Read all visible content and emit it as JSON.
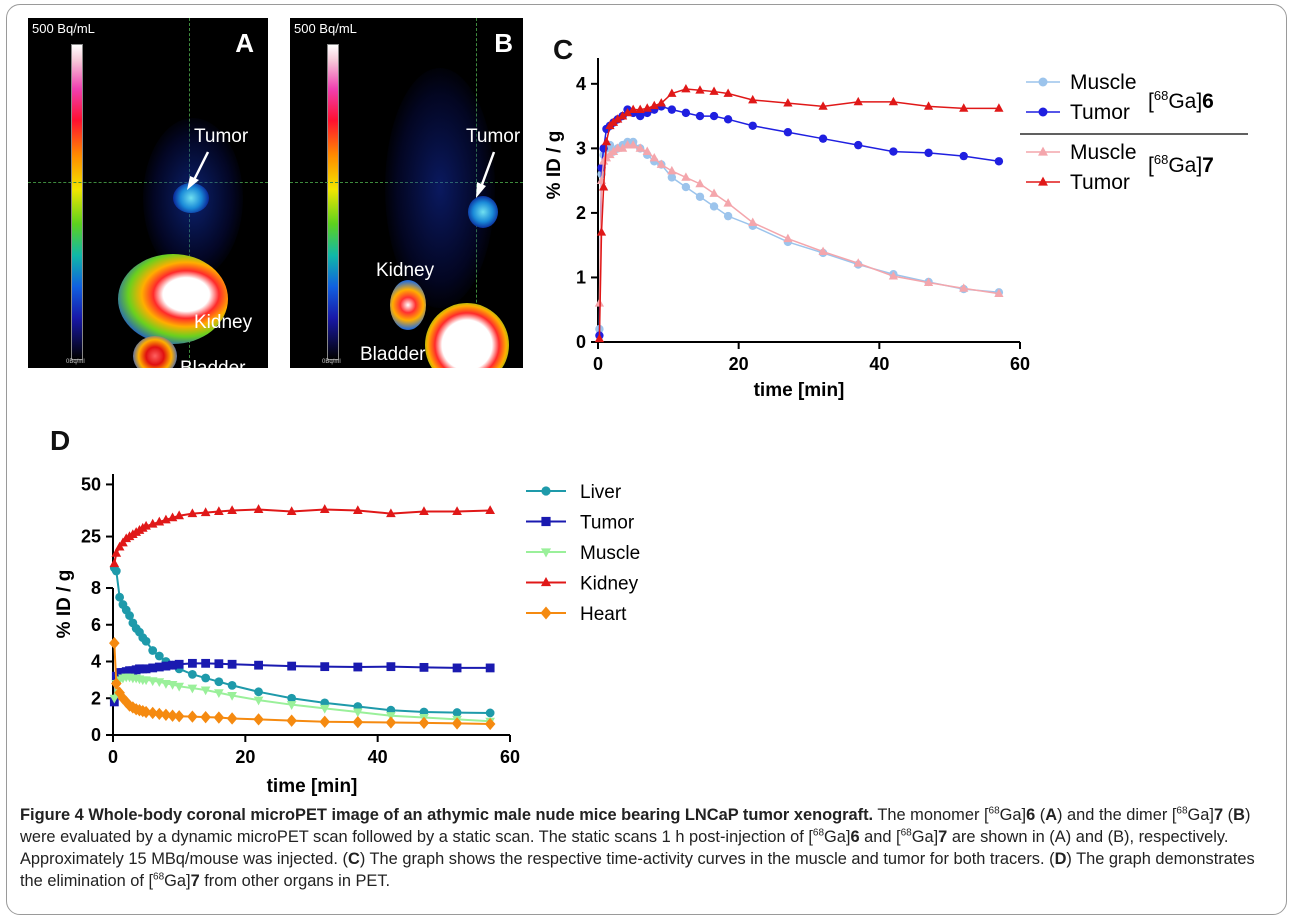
{
  "panels": {
    "A": {
      "letter": "A",
      "scale_max": "500 Bq/mL",
      "scale_min": "0Bq/ml",
      "labels": [
        "Tumor",
        "Kidney",
        "Bladder"
      ]
    },
    "B": {
      "letter": "B",
      "scale_max": "500 Bq/mL",
      "scale_min": "0Bq/ml",
      "labels": [
        "Tumor",
        "Kidney",
        "Bladder"
      ]
    },
    "C": {
      "letter": "C"
    },
    "D": {
      "letter": "D"
    }
  },
  "caption": {
    "label": "Figure 4",
    "title": "Whole-body coronal microPET image of an athymic male nude mice bearing LNCaP tumor xenograft.",
    "t1": "The monomer [",
    "sup": "68",
    "t2": "Ga]",
    "n6": "6",
    "t3": " (",
    "A": "A",
    "t4": ") and the dimer [",
    "n7": "7",
    "B": "B",
    "t5": ") were evaluated by a dynamic microPET scan followed by a static scan. The static scans 1 h post-injection of [",
    "t6": " and [",
    "t7": " are shown in (A) and (B), respectively. Approximately 15 MBq/mouse was injected. (",
    "C": "C",
    "t8": ") The graph shows the respective time-activity curves in the muscle and tumor for both tracers. (",
    "D": "D",
    "t9": ") The graph demonstrates the elimination of [",
    "t10": " from other organs in PET."
  },
  "chart_data": [
    {
      "type": "line",
      "panel": "C",
      "xlabel": "time [min]",
      "ylabel": "% ID / g",
      "xlim": [
        0,
        60
      ],
      "ylim": [
        0,
        4.4
      ],
      "xticks": [
        0,
        20,
        40,
        60
      ],
      "yticks": [
        0,
        1,
        2,
        3,
        4
      ],
      "legend_position": "right",
      "legend_groups": [
        {
          "label_pre": "[",
          "label_sup": "68",
          "label_mid": "Ga]",
          "label_bold": "6",
          "series": [
            0,
            1
          ]
        },
        {
          "label_pre": "[",
          "label_sup": "68",
          "label_mid": "Ga]",
          "label_bold": "7",
          "series": [
            2,
            3
          ]
        }
      ],
      "series": [
        {
          "name": "Muscle",
          "color": "#9cc4ec",
          "marker": "circle",
          "x": [
            0.2,
            0.5,
            0.8,
            1.2,
            1.7,
            2.2,
            2.8,
            3.5,
            4.2,
            5,
            6,
            7,
            8,
            9,
            10.5,
            12.5,
            14.5,
            16.5,
            18.5,
            22,
            27,
            32,
            37,
            42,
            47,
            52,
            57
          ],
          "y": [
            0.2,
            2.6,
            2.9,
            3.0,
            3.05,
            2.95,
            3.0,
            3.05,
            3.1,
            3.1,
            3.0,
            2.9,
            2.8,
            2.75,
            2.55,
            2.4,
            2.25,
            2.1,
            1.95,
            1.8,
            1.55,
            1.38,
            1.2,
            1.05,
            0.93,
            0.82,
            0.77
          ]
        },
        {
          "name": "Tumor",
          "color": "#1f1fe0",
          "marker": "circle",
          "x": [
            0.2,
            0.5,
            0.8,
            1.2,
            1.7,
            2.2,
            2.8,
            3.5,
            4.2,
            5,
            6,
            7,
            8,
            9,
            10.5,
            12.5,
            14.5,
            16.5,
            18.5,
            22,
            27,
            32,
            37,
            42,
            47,
            52,
            57
          ],
          "y": [
            0.1,
            2.7,
            3.0,
            3.3,
            3.35,
            3.4,
            3.45,
            3.5,
            3.6,
            3.55,
            3.5,
            3.55,
            3.6,
            3.65,
            3.6,
            3.55,
            3.5,
            3.5,
            3.45,
            3.35,
            3.25,
            3.15,
            3.05,
            2.95,
            2.93,
            2.88,
            2.8
          ]
        },
        {
          "name": "Muscle",
          "color": "#f4a6ac",
          "marker": "triangle",
          "x": [
            0.2,
            0.5,
            0.8,
            1.2,
            1.7,
            2.2,
            2.8,
            3.5,
            4.2,
            5,
            6,
            7,
            8,
            9,
            10.5,
            12.5,
            14.5,
            16.5,
            18.5,
            22,
            27,
            32,
            37,
            42,
            47,
            52,
            57
          ],
          "y": [
            0.6,
            2.5,
            2.8,
            2.85,
            2.9,
            2.95,
            3.0,
            3.0,
            3.05,
            3.05,
            3.0,
            2.95,
            2.85,
            2.75,
            2.65,
            2.55,
            2.45,
            2.3,
            2.15,
            1.85,
            1.6,
            1.4,
            1.22,
            1.02,
            0.92,
            0.83,
            0.75
          ]
        },
        {
          "name": "Tumor",
          "color": "#e01818",
          "marker": "triangle",
          "x": [
            0.2,
            0.5,
            0.8,
            1.2,
            1.7,
            2.2,
            2.8,
            3.5,
            4.2,
            5,
            6,
            7,
            8,
            9,
            10.5,
            12.5,
            14.5,
            16.5,
            18.5,
            22,
            27,
            32,
            37,
            42,
            47,
            52,
            57
          ],
          "y": [
            0.05,
            1.7,
            2.4,
            3.1,
            3.35,
            3.4,
            3.45,
            3.5,
            3.55,
            3.6,
            3.6,
            3.62,
            3.66,
            3.7,
            3.85,
            3.92,
            3.9,
            3.88,
            3.85,
            3.75,
            3.7,
            3.65,
            3.72,
            3.72,
            3.65,
            3.62,
            3.62
          ]
        }
      ]
    },
    {
      "type": "line",
      "panel": "D",
      "xlabel": "time [min]",
      "ylabel": "% ID / g",
      "xlim": [
        0,
        60
      ],
      "axis_break": {
        "lower_range": [
          0,
          8
        ],
        "upper_range": [
          8,
          55
        ]
      },
      "xticks": [
        0,
        20,
        40,
        60
      ],
      "yticks": [
        0,
        2,
        4,
        6,
        8,
        25,
        50
      ],
      "legend_position": "right",
      "series": [
        {
          "name": "Liver",
          "color": "#1e9aaa",
          "marker": "circle",
          "x": [
            0.2,
            0.5,
            1,
            1.5,
            2,
            2.5,
            3,
            3.5,
            4,
            4.5,
            5,
            6,
            7,
            8,
            9,
            10,
            12,
            14,
            16,
            18,
            22,
            27,
            32,
            37,
            42,
            47,
            52,
            57
          ],
          "y": [
            10,
            8.5,
            7.5,
            7.1,
            6.8,
            6.5,
            6.1,
            5.8,
            5.6,
            5.3,
            5.1,
            4.6,
            4.3,
            4.0,
            3.8,
            3.6,
            3.3,
            3.1,
            2.9,
            2.7,
            2.35,
            2.0,
            1.75,
            1.55,
            1.35,
            1.25,
            1.22,
            1.2
          ]
        },
        {
          "name": "Tumor",
          "color": "#1a1ab0",
          "marker": "square",
          "x": [
            0.2,
            0.5,
            1,
            1.5,
            2,
            2.5,
            3,
            3.5,
            4,
            4.5,
            5,
            6,
            7,
            8,
            9,
            10,
            12,
            14,
            16,
            18,
            22,
            27,
            32,
            37,
            42,
            47,
            52,
            57
          ],
          "y": [
            1.8,
            3.2,
            3.4,
            3.4,
            3.45,
            3.5,
            3.5,
            3.55,
            3.6,
            3.6,
            3.6,
            3.65,
            3.7,
            3.75,
            3.8,
            3.85,
            3.9,
            3.9,
            3.88,
            3.85,
            3.8,
            3.75,
            3.72,
            3.7,
            3.72,
            3.68,
            3.65,
            3.65
          ]
        },
        {
          "name": "Muscle",
          "color": "#9af09a",
          "marker": "triangle-down",
          "x": [
            0.2,
            0.5,
            1,
            1.5,
            2,
            2.5,
            3,
            3.5,
            4,
            4.5,
            5,
            6,
            7,
            8,
            9,
            10,
            12,
            14,
            16,
            18,
            22,
            27,
            32,
            37,
            42,
            47,
            52,
            57
          ],
          "y": [
            2.0,
            2.8,
            3.0,
            3.1,
            3.15,
            3.15,
            3.1,
            3.1,
            3.05,
            3.0,
            3.0,
            2.95,
            2.9,
            2.8,
            2.75,
            2.65,
            2.55,
            2.45,
            2.3,
            2.15,
            1.9,
            1.65,
            1.45,
            1.25,
            1.05,
            0.95,
            0.85,
            0.75
          ]
        },
        {
          "name": "Kidney",
          "color": "#e01818",
          "marker": "triangle",
          "x": [
            0.2,
            0.5,
            1,
            1.5,
            2,
            2.5,
            3,
            3.5,
            4,
            4.5,
            5,
            6,
            7,
            8,
            9,
            10,
            12,
            14,
            16,
            18,
            22,
            27,
            32,
            37,
            42,
            47,
            52,
            57
          ],
          "y": [
            12,
            17,
            20,
            22,
            24,
            25,
            26,
            27,
            28,
            29,
            30,
            31,
            32,
            33,
            34,
            35,
            36,
            36.5,
            37,
            37.5,
            38,
            37,
            38,
            37.5,
            36,
            37,
            37,
            37.5
          ]
        },
        {
          "name": "Heart",
          "color": "#f58a10",
          "marker": "diamond",
          "x": [
            0.2,
            0.5,
            1,
            1.5,
            2,
            2.5,
            3,
            3.5,
            4,
            4.5,
            5,
            6,
            7,
            8,
            9,
            10,
            12,
            14,
            16,
            18,
            22,
            27,
            32,
            37,
            42,
            47,
            52,
            57
          ],
          "y": [
            5.0,
            2.8,
            2.3,
            2.0,
            1.8,
            1.6,
            1.5,
            1.4,
            1.35,
            1.3,
            1.25,
            1.2,
            1.15,
            1.1,
            1.05,
            1.02,
            1.0,
            0.97,
            0.95,
            0.9,
            0.85,
            0.78,
            0.72,
            0.7,
            0.68,
            0.66,
            0.63,
            0.6
          ]
        }
      ]
    }
  ]
}
